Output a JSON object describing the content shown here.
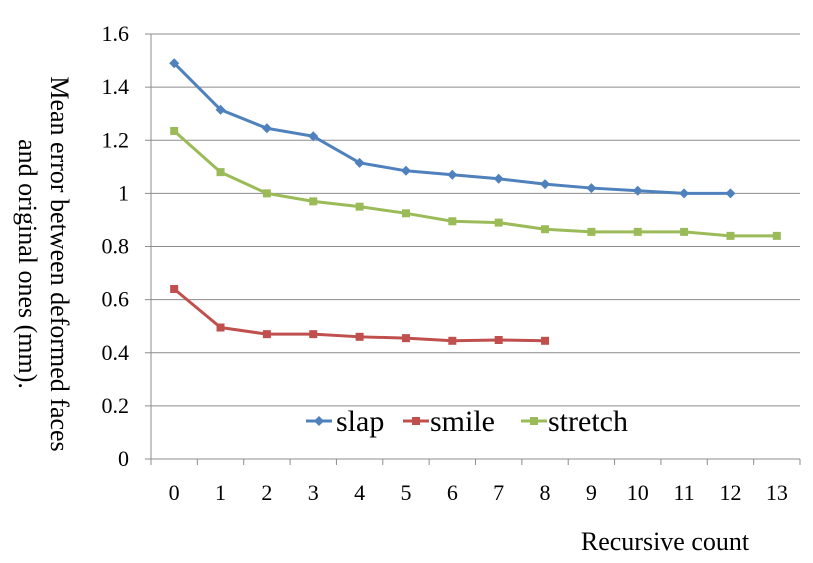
{
  "chart_data": {
    "type": "line",
    "title": "",
    "xlabel": "Recursive count",
    "ylabel": "Mean error between deformed faces and original ones (mm).",
    "ylabel_lines": [
      "Mean error between deformed faces",
      "and original ones (mm)."
    ],
    "x": [
      0,
      1,
      2,
      3,
      4,
      5,
      6,
      7,
      8,
      9,
      10,
      11,
      12,
      13
    ],
    "x_tick_labels": [
      "0",
      "1",
      "2",
      "3",
      "4",
      "5",
      "6",
      "7",
      "8",
      "9",
      "10",
      "11",
      "12",
      "13"
    ],
    "ylim": [
      0,
      1.6
    ],
    "y_ticks": [
      0,
      0.2,
      0.4,
      0.6,
      0.8,
      1,
      1.2,
      1.4,
      1.6
    ],
    "y_tick_labels": [
      "0",
      "0.2",
      "0.4",
      "0.6",
      "0.8",
      "1",
      "1.2",
      "1.4",
      "1.6"
    ],
    "grid": "horizontal",
    "legend_position": "bottom-center",
    "series": [
      {
        "name": "slap",
        "color": "#4F81BD",
        "marker": "diamond",
        "x": [
          0,
          1,
          2,
          3,
          4,
          5,
          6,
          7,
          8,
          9,
          10,
          11,
          12
        ],
        "values": [
          1.49,
          1.315,
          1.245,
          1.215,
          1.115,
          1.085,
          1.07,
          1.055,
          1.035,
          1.02,
          1.01,
          1.0,
          1.0
        ]
      },
      {
        "name": "smile",
        "color": "#C0504D",
        "marker": "square",
        "x": [
          0,
          1,
          2,
          3,
          4,
          5,
          6,
          7,
          8
        ],
        "values": [
          0.64,
          0.495,
          0.47,
          0.47,
          0.46,
          0.455,
          0.445,
          0.448,
          0.445
        ]
      },
      {
        "name": "stretch",
        "color": "#9BBB59",
        "marker": "square",
        "x": [
          0,
          1,
          2,
          3,
          4,
          5,
          6,
          7,
          8,
          9,
          10,
          11,
          12,
          13
        ],
        "values": [
          1.235,
          1.08,
          1.0,
          0.97,
          0.95,
          0.925,
          0.895,
          0.89,
          0.865,
          0.855,
          0.855,
          0.855,
          0.84,
          0.84
        ]
      }
    ]
  }
}
